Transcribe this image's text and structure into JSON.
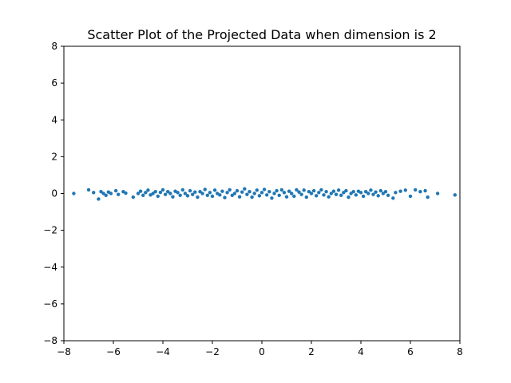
{
  "chart_data": {
    "type": "scatter",
    "title": "Scatter Plot of the Projected Data when dimension is 2",
    "xlabel": "",
    "ylabel": "",
    "xlim": [
      -8,
      8
    ],
    "ylim": [
      -8,
      8
    ],
    "x_ticks": [
      -8,
      -6,
      -4,
      -2,
      0,
      2,
      4,
      6,
      8
    ],
    "y_ticks": [
      -8,
      -6,
      -4,
      -2,
      0,
      2,
      4,
      6,
      8
    ],
    "x_tick_labels": [
      "−8",
      "−6",
      "−4",
      "−2",
      "0",
      "2",
      "4",
      "6",
      "8"
    ],
    "y_tick_labels": [
      "−8",
      "−6",
      "−4",
      "−2",
      "0",
      "2",
      "4",
      "6",
      "8"
    ],
    "grid": false,
    "point_color": "#1f77b4",
    "series": [
      {
        "x": [
          -7.6,
          -7.0,
          -6.8,
          -6.6,
          -6.5,
          -6.4,
          -6.3,
          -6.2,
          -6.1,
          -5.9,
          -5.8,
          -5.6,
          -5.5,
          -5.2,
          -5.0,
          -4.9,
          -4.8,
          -4.7,
          -4.6,
          -4.5,
          -4.4,
          -4.3,
          -4.2,
          -4.1,
          -4.0,
          -3.9,
          -3.8,
          -3.7,
          -3.6,
          -3.5,
          -3.4,
          -3.3,
          -3.2,
          -3.1,
          -3.0,
          -2.9,
          -2.8,
          -2.7,
          -2.6,
          -2.5,
          -2.4,
          -2.3,
          -2.2,
          -2.1,
          -2.0,
          -1.9,
          -1.8,
          -1.7,
          -1.6,
          -1.5,
          -1.4,
          -1.3,
          -1.2,
          -1.1,
          -1.0,
          -0.9,
          -0.8,
          -0.7,
          -0.6,
          -0.5,
          -0.4,
          -0.3,
          -0.2,
          -0.1,
          0.0,
          0.1,
          0.2,
          0.3,
          0.4,
          0.5,
          0.6,
          0.7,
          0.8,
          0.9,
          1.0,
          1.1,
          1.2,
          1.3,
          1.4,
          1.5,
          1.6,
          1.7,
          1.8,
          1.9,
          2.0,
          2.1,
          2.2,
          2.3,
          2.4,
          2.5,
          2.6,
          2.7,
          2.8,
          2.9,
          3.0,
          3.1,
          3.2,
          3.3,
          3.4,
          3.5,
          3.6,
          3.7,
          3.8,
          3.9,
          4.0,
          4.1,
          4.2,
          4.3,
          4.4,
          4.5,
          4.6,
          4.7,
          4.8,
          4.9,
          5.0,
          5.1,
          5.3,
          5.4,
          5.6,
          5.8,
          6.0,
          6.2,
          6.4,
          6.6,
          6.7,
          7.1,
          7.8
        ],
        "y": [
          0.0,
          0.2,
          0.05,
          -0.3,
          0.1,
          0.0,
          -0.1,
          0.08,
          0.0,
          0.15,
          -0.05,
          0.1,
          0.02,
          -0.2,
          0.0,
          0.12,
          -0.1,
          0.05,
          0.18,
          -0.08,
          0.0,
          0.1,
          -0.15,
          0.06,
          0.2,
          -0.05,
          0.1,
          0.0,
          -0.18,
          0.12,
          0.05,
          -0.1,
          0.2,
          0.0,
          -0.12,
          0.15,
          -0.05,
          0.08,
          -0.2,
          0.1,
          0.0,
          0.22,
          -0.1,
          0.05,
          -0.15,
          0.18,
          0.0,
          -0.08,
          0.12,
          -0.22,
          0.05,
          0.2,
          -0.1,
          0.0,
          0.15,
          -0.18,
          0.08,
          0.25,
          -0.05,
          0.1,
          -0.2,
          0.0,
          0.18,
          -0.12,
          0.05,
          0.22,
          -0.08,
          0.1,
          -0.25,
          0.0,
          0.15,
          -0.1,
          0.2,
          0.05,
          -0.18,
          0.12,
          0.0,
          -0.15,
          0.2,
          0.08,
          -0.05,
          0.18,
          -0.2,
          0.1,
          0.0,
          0.15,
          -0.12,
          0.05,
          0.2,
          -0.08,
          0.1,
          -0.18,
          0.0,
          0.12,
          -0.05,
          0.18,
          -0.1,
          0.05,
          0.15,
          -0.2,
          0.0,
          0.1,
          -0.08,
          0.12,
          0.05,
          -0.15,
          0.1,
          0.0,
          0.18,
          -0.05,
          0.08,
          -0.12,
          0.15,
          0.0,
          0.1,
          -0.1,
          -0.25,
          0.05,
          0.12,
          0.18,
          -0.15,
          0.2,
          0.1,
          0.15,
          -0.2,
          0.0,
          -0.08
        ]
      }
    ]
  }
}
